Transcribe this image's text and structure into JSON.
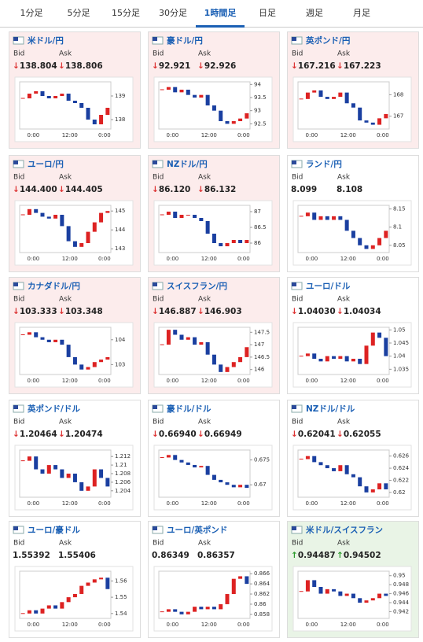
{
  "tabs": [
    {
      "label": "1分足"
    },
    {
      "label": "5分足"
    },
    {
      "label": "15分足"
    },
    {
      "label": "30分足"
    },
    {
      "label": "1時間足",
      "active": true
    },
    {
      "label": "日足"
    },
    {
      "label": "週足"
    },
    {
      "label": "月足"
    }
  ],
  "cards": [
    {
      "title": "米ドル/円",
      "bid_label": "Bid",
      "ask_label": "Ask",
      "bid": "↓138.804",
      "ask": "↓138.806",
      "trend": "down",
      "background": "#fcecec",
      "chart": {
        "type": "candlestick",
        "x_labels": [
          "0:00",
          "12:00",
          "0:00"
        ],
        "ylim": [
          137.6,
          139.6
        ],
        "yticks": [
          139,
          138
        ],
        "closes": [
          138.9,
          139.1,
          139.2,
          139.0,
          138.9,
          139.0,
          139.1,
          138.8,
          138.7,
          138.5,
          138.0,
          137.8,
          138.2,
          138.5
        ]
      }
    },
    {
      "title": "豪ドル/円",
      "bid_label": "Bid",
      "ask_label": "Ask",
      "bid": "↓92.921",
      "ask": "↓92.926",
      "trend": "down",
      "background": "#fcecec",
      "chart": {
        "type": "candlestick",
        "x_labels": [
          "0:00",
          "12:00",
          "0:00"
        ],
        "ylim": [
          92.3,
          94.1
        ],
        "yticks": [
          94,
          93.5,
          93,
          92.5
        ],
        "closes": [
          93.8,
          93.9,
          93.7,
          93.8,
          93.6,
          93.5,
          93.6,
          93.2,
          93.0,
          92.6,
          92.5,
          92.6,
          92.7,
          92.9
        ]
      }
    },
    {
      "title": "英ポンド/円",
      "bid_label": "Bid",
      "ask_label": "Ask",
      "bid": "↓167.216",
      "ask": "↓167.223",
      "trend": "down",
      "background": "#fcecec",
      "chart": {
        "type": "candlestick",
        "x_labels": [
          "0:00",
          "12:00",
          "0:00"
        ],
        "ylim": [
          166.4,
          168.6
        ],
        "yticks": [
          168,
          167
        ],
        "closes": [
          167.8,
          168.1,
          168.2,
          167.9,
          167.8,
          167.9,
          168.1,
          167.6,
          167.4,
          166.8,
          166.7,
          166.6,
          166.9,
          167.1
        ]
      }
    },
    {
      "title": "ユーロ/円",
      "bid_label": "Bid",
      "ask_label": "Ask",
      "bid": "↓144.400",
      "ask": "↓144.405",
      "trend": "down",
      "background": "#fcecec",
      "chart": {
        "type": "candlestick",
        "x_labels": [
          "0:00",
          "12:00",
          "0:00"
        ],
        "ylim": [
          142.8,
          145.3
        ],
        "yticks": [
          145,
          144,
          143
        ],
        "closes": [
          144.8,
          145.1,
          144.9,
          144.7,
          144.6,
          144.8,
          144.2,
          143.4,
          143.1,
          143.3,
          143.9,
          144.4,
          144.9,
          145.0
        ]
      }
    },
    {
      "title": "NZドル/円",
      "bid_label": "Bid",
      "ask_label": "Ask",
      "bid": "↓86.120",
      "ask": "↓86.132",
      "trend": "down",
      "background": "#fcecec",
      "chart": {
        "type": "candlestick",
        "x_labels": [
          "0:00",
          "12:00",
          "0:00"
        ],
        "ylim": [
          85.7,
          87.2
        ],
        "yticks": [
          87,
          86.5,
          86
        ],
        "closes": [
          86.9,
          87.0,
          86.8,
          86.9,
          86.9,
          86.8,
          86.7,
          86.3,
          86.0,
          85.9,
          86.0,
          86.1,
          86.0,
          86.1
        ]
      }
    },
    {
      "title": "ランド/円",
      "bid_label": "Bid",
      "ask_label": "Ask",
      "bid": "8.099",
      "ask": "8.108",
      "trend": "none",
      "background": "#ffffff",
      "chart": {
        "type": "candlestick",
        "x_labels": [
          "0:00",
          "12:00",
          "0:00"
        ],
        "ylim": [
          8.03,
          8.16
        ],
        "yticks": [
          8.15,
          8.1,
          8.05
        ],
        "closes": [
          8.13,
          8.14,
          8.12,
          8.13,
          8.12,
          8.13,
          8.12,
          8.09,
          8.07,
          8.05,
          8.04,
          8.05,
          8.07,
          8.09
        ]
      }
    },
    {
      "title": "カナダドル/円",
      "bid_label": "Bid",
      "ask_label": "Ask",
      "bid": "↓103.333",
      "ask": "↓103.348",
      "trend": "down",
      "background": "#fcecec",
      "chart": {
        "type": "candlestick",
        "x_labels": [
          "0:00",
          "12:00",
          "0:00"
        ],
        "ylim": [
          102.6,
          104.5
        ],
        "yticks": [
          104,
          103
        ],
        "closes": [
          104.2,
          104.3,
          104.1,
          104.0,
          103.9,
          104.0,
          103.8,
          103.3,
          103.0,
          102.8,
          102.9,
          103.1,
          103.2,
          103.3
        ]
      }
    },
    {
      "title": "スイスフラン/円",
      "bid_label": "Bid",
      "ask_label": "Ask",
      "bid": "↓146.887",
      "ask": "↓146.903",
      "trend": "down",
      "background": "#fcecec",
      "chart": {
        "type": "candlestick",
        "x_labels": [
          "0:00",
          "12:00",
          "0:00"
        ],
        "ylim": [
          145.8,
          147.7
        ],
        "yticks": [
          147.5,
          147,
          146.5,
          146
        ],
        "closes": [
          147.0,
          147.6,
          147.4,
          147.2,
          147.3,
          147.0,
          147.1,
          146.6,
          146.2,
          145.9,
          146.1,
          146.3,
          146.5,
          146.9
        ]
      }
    },
    {
      "title": "ユーロ/ドル",
      "bid_label": "Bid",
      "ask_label": "Ask",
      "bid": "↓1.04030",
      "ask": "↓1.04034",
      "trend": "down",
      "background": "#ffffff",
      "chart": {
        "type": "candlestick",
        "x_labels": [
          "0:00",
          "12:00",
          "0:00"
        ],
        "ylim": [
          1.033,
          1.051
        ],
        "yticks": [
          1.05,
          1.045,
          1.04,
          1.035
        ],
        "closes": [
          1.04,
          1.041,
          1.039,
          1.038,
          1.04,
          1.039,
          1.04,
          1.038,
          1.039,
          1.037,
          1.044,
          1.049,
          1.047,
          1.04
        ]
      }
    },
    {
      "title": "英ポンド/ドル",
      "bid_label": "Bid",
      "ask_label": "Ask",
      "bid": "↓1.20464",
      "ask": "↓1.20474",
      "trend": "down",
      "background": "#ffffff",
      "chart": {
        "type": "candlestick",
        "x_labels": [
          "0:00",
          "12:00",
          "0:00"
        ],
        "ylim": [
          1.2025,
          1.2135
        ],
        "yticks": [
          1.212,
          1.21,
          1.208,
          1.206,
          1.204
        ],
        "closes": [
          1.211,
          1.212,
          1.209,
          1.208,
          1.21,
          1.209,
          1.207,
          1.208,
          1.206,
          1.204,
          1.205,
          1.209,
          1.207,
          1.205
        ]
      }
    },
    {
      "title": "豪ドル/ドル",
      "bid_label": "Bid",
      "ask_label": "Ask",
      "bid": "↓0.66940",
      "ask": "↓0.66949",
      "trend": "down",
      "background": "#ffffff",
      "chart": {
        "type": "candlestick",
        "x_labels": [
          "0:00",
          "12:00",
          "0:00"
        ],
        "ylim": [
          0.6675,
          0.677
        ],
        "yticks": [
          0.675,
          0.67
        ],
        "closes": [
          0.6755,
          0.676,
          0.675,
          0.6745,
          0.674,
          0.6735,
          0.6738,
          0.672,
          0.671,
          0.6705,
          0.67,
          0.6695,
          0.67,
          0.6694
        ]
      }
    },
    {
      "title": "NZドル/ドル",
      "bid_label": "Bid",
      "ask_label": "Ask",
      "bid": "↓0.62041",
      "ask": "↓0.62055",
      "trend": "down",
      "background": "#ffffff",
      "chart": {
        "type": "candlestick",
        "x_labels": [
          "0:00",
          "12:00",
          "0:00"
        ],
        "ylim": [
          0.6192,
          0.627
        ],
        "yticks": [
          0.626,
          0.624,
          0.622,
          0.62
        ],
        "closes": [
          0.6255,
          0.626,
          0.625,
          0.6245,
          0.624,
          0.6235,
          0.6245,
          0.623,
          0.6225,
          0.621,
          0.62,
          0.6205,
          0.6215,
          0.6205
        ]
      }
    },
    {
      "title": "ユーロ/豪ドル",
      "bid_label": "Bid",
      "ask_label": "Ask",
      "bid": "1.55392",
      "ask": "1.55406",
      "trend": "none",
      "background": "#ffffff",
      "chart": {
        "type": "candlestick",
        "x_labels": [
          "0:00",
          "12:00",
          "0:00"
        ],
        "ylim": [
          1.537,
          1.566
        ],
        "yticks": [
          1.56,
          1.55,
          1.54
        ],
        "closes": [
          1.54,
          1.542,
          1.54,
          1.543,
          1.545,
          1.543,
          1.547,
          1.55,
          1.552,
          1.557,
          1.559,
          1.561,
          1.562,
          1.555
        ]
      }
    },
    {
      "title": "ユーロ/英ポンド",
      "bid_label": "Bid",
      "ask_label": "Ask",
      "bid": "0.86349",
      "ask": "0.86357",
      "trend": "none",
      "background": "#ffffff",
      "chart": {
        "type": "candlestick",
        "x_labels": [
          "0:00",
          "12:00",
          "0:00"
        ],
        "ylim": [
          0.8572,
          0.8665
        ],
        "yticks": [
          0.866,
          0.864,
          0.862,
          0.86,
          0.858
        ],
        "closes": [
          0.8585,
          0.859,
          0.8585,
          0.858,
          0.8585,
          0.8595,
          0.859,
          0.8595,
          0.859,
          0.86,
          0.862,
          0.865,
          0.8655,
          0.864
        ]
      }
    },
    {
      "title": "米ドル/スイスフラン",
      "bid_label": "Bid",
      "ask_label": "Ask",
      "bid": "↑0.94487",
      "ask": "↑0.94502",
      "trend": "up",
      "background": "#e9f4e6",
      "chart": {
        "type": "candlestick",
        "x_labels": [
          "0:00",
          "12:00",
          "0:00"
        ],
        "ylim": [
          0.9405,
          0.951
        ],
        "yticks": [
          0.95,
          0.948,
          0.946,
          0.944,
          0.942
        ],
        "closes": [
          0.9465,
          0.949,
          0.9475,
          0.946,
          0.947,
          0.9465,
          0.9455,
          0.946,
          0.945,
          0.944,
          0.9445,
          0.945,
          0.946,
          0.9455
        ]
      }
    }
  ]
}
